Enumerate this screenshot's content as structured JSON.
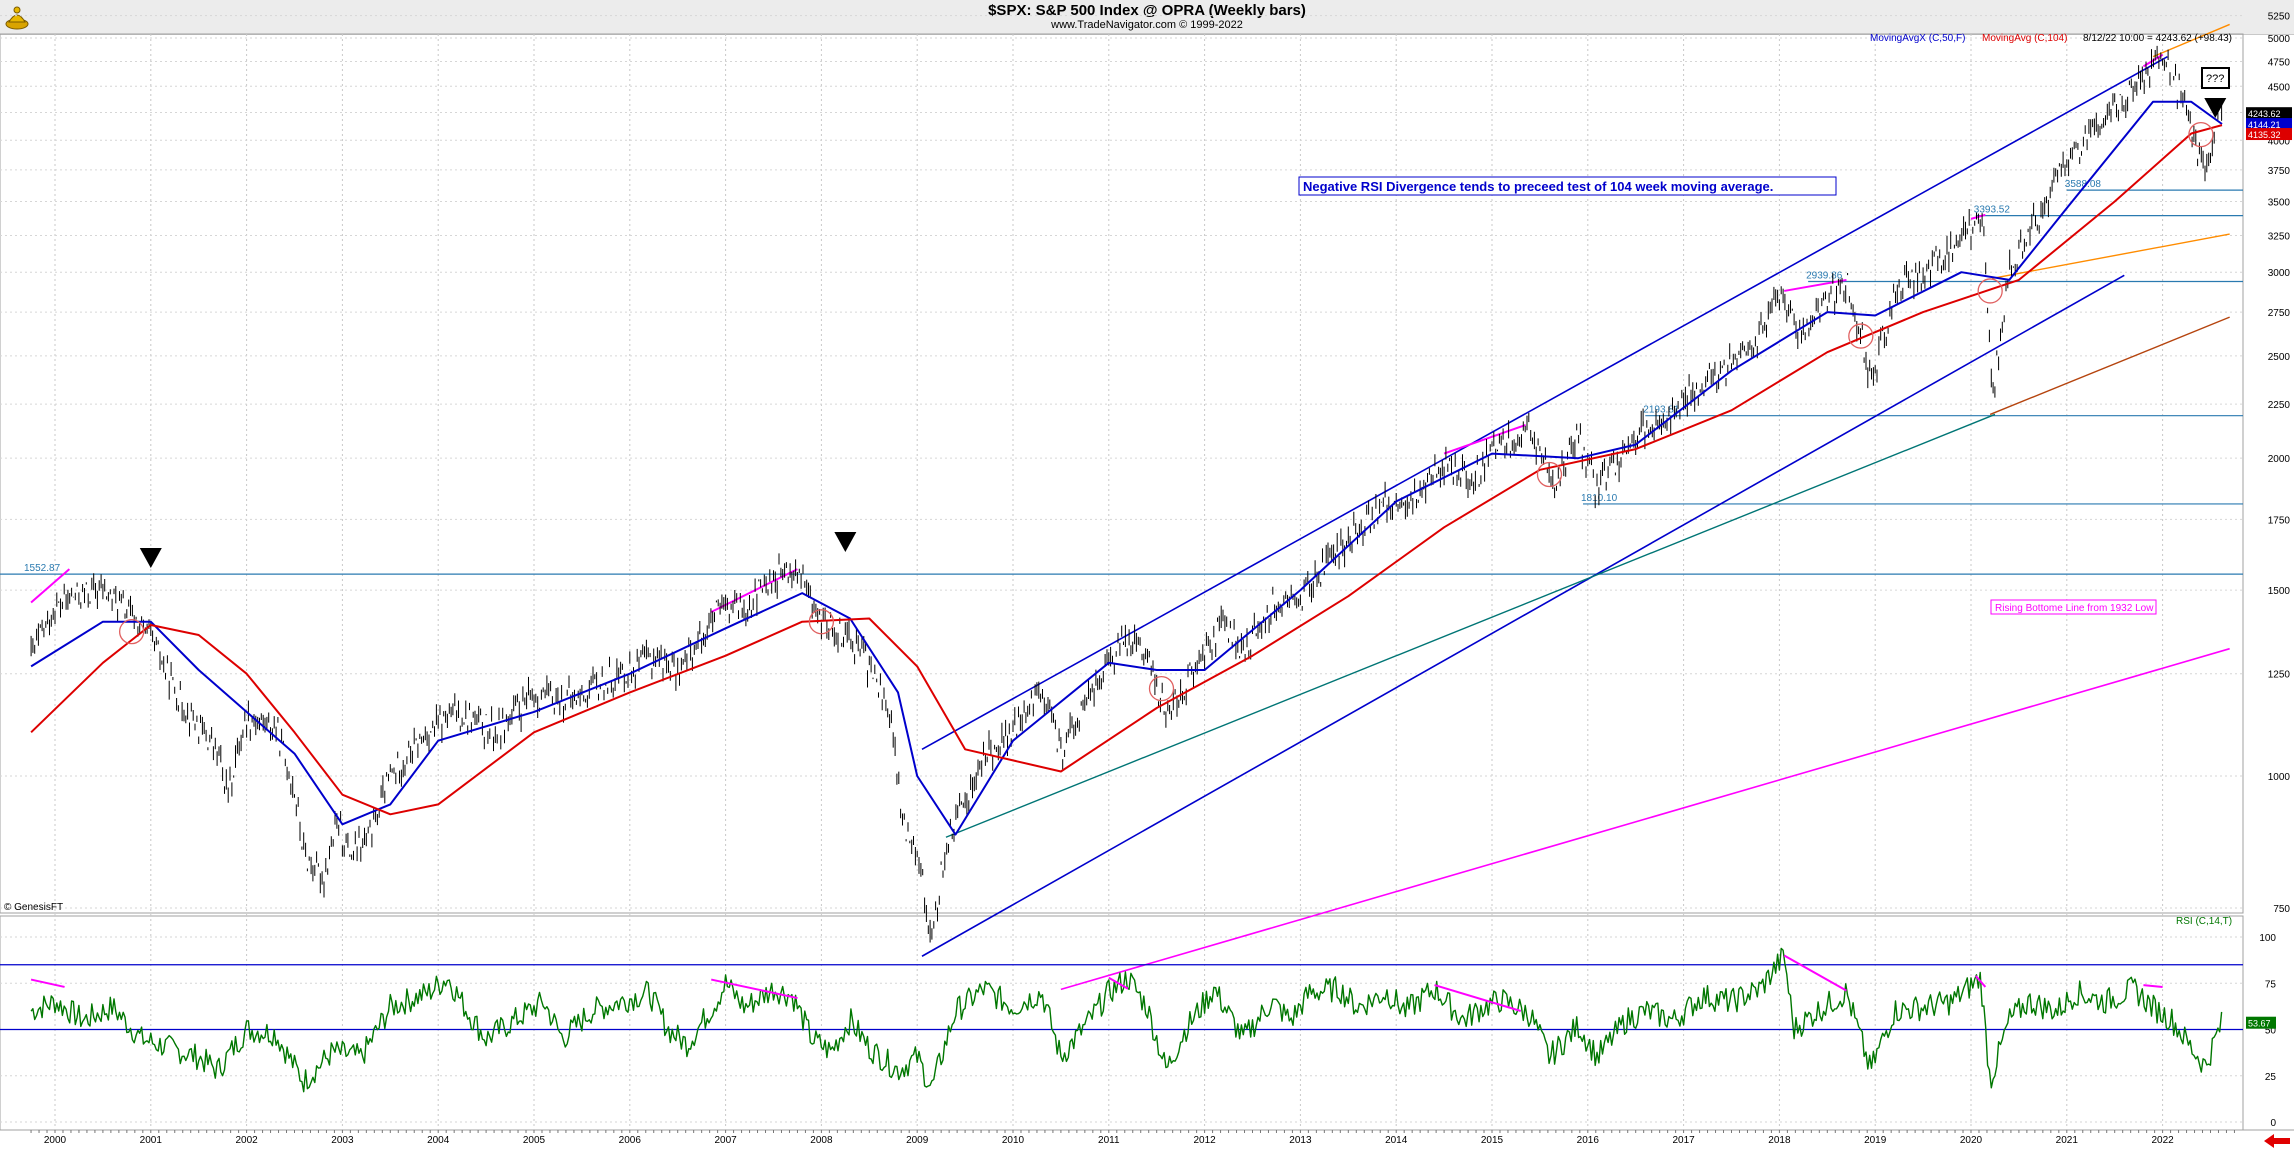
{
  "header": {
    "title": "$SPX:  S&P 500 Index @ OPRA  (Weekly bars)",
    "subtitle": "www.TradeNavigator.com © 1999-2022"
  },
  "legend": {
    "ma50": "MovingAvgX (C,50,F)",
    "ma104": "MovingAvg (C,104)",
    "quote": "8/12/22 10:00 = 4243.62 (+98.43)",
    "rsi": "RSI (C,14,T)",
    "copyright": "© GenesisFT"
  },
  "annotations": {
    "note": "Negative RSI Divergence tends to preceed test of 104 week moving average.",
    "rising_line": "Rising Bottome Line from 1932 Low",
    "question": "???"
  },
  "colors": {
    "price": "#000000",
    "ma50": "#0000cc",
    "ma104": "#dd0000",
    "channel": "#0000cc",
    "orange": "#ff8c00",
    "brown": "#b5440e",
    "teal": "#007575",
    "magenta": "#ff00ff",
    "hline": "#2a7ab0",
    "rsi": "#007700"
  },
  "chart_data": {
    "type": "line",
    "title": "$SPX:  S&P 500 Index @ OPRA  (Weekly bars)",
    "x_ticks": [
      "2000",
      "2001",
      "2002",
      "2003",
      "2004",
      "2005",
      "2006",
      "2007",
      "2008",
      "2009",
      "2010",
      "2011",
      "2012",
      "2013",
      "2014",
      "2015",
      "2016",
      "2017",
      "2018",
      "2019",
      "2020",
      "2021",
      "2022"
    ],
    "y_ticks": [
      750,
      1000,
      1250,
      1500,
      1750,
      2000,
      2250,
      2500,
      2750,
      3000,
      3250,
      3500,
      3750,
      4000,
      4250,
      4500,
      4750,
      5000,
      5250
    ],
    "price_labels": [
      "4243.62",
      "4144.21",
      "4135.32"
    ],
    "rsi_ticks": [
      0,
      25,
      50,
      75,
      100
    ],
    "rsi_value_label": "53.67",
    "series": [
      {
        "name": "$SPX",
        "values": [
          [
            1999.75,
            1300
          ],
          [
            2000.0,
            1440
          ],
          [
            2000.2,
            1480
          ],
          [
            2000.5,
            1500
          ],
          [
            2000.7,
            1450
          ],
          [
            2001.0,
            1350
          ],
          [
            2001.3,
            1180
          ],
          [
            2001.7,
            1050
          ],
          [
            2001.8,
            960
          ],
          [
            2002.0,
            1140
          ],
          [
            2002.3,
            1110
          ],
          [
            2002.5,
            970
          ],
          [
            2002.6,
            840
          ],
          [
            2002.8,
            800
          ],
          [
            2002.95,
            900
          ],
          [
            2003.1,
            840
          ],
          [
            2003.3,
            880
          ],
          [
            2003.5,
            1000
          ],
          [
            2003.9,
            1100
          ],
          [
            2004.2,
            1150
          ],
          [
            2004.6,
            1100
          ],
          [
            2005.0,
            1190
          ],
          [
            2005.4,
            1180
          ],
          [
            2005.9,
            1250
          ],
          [
            2006.3,
            1300
          ],
          [
            2006.5,
            1250
          ],
          [
            2006.9,
            1420
          ],
          [
            2007.2,
            1450
          ],
          [
            2007.5,
            1540
          ],
          [
            2007.75,
            1560
          ],
          [
            2008.0,
            1400
          ],
          [
            2008.3,
            1360
          ],
          [
            2008.5,
            1270
          ],
          [
            2008.7,
            1160
          ],
          [
            2008.85,
            900
          ],
          [
            2009.0,
            860
          ],
          [
            2009.15,
            690
          ],
          [
            2009.3,
            860
          ],
          [
            2009.5,
            950
          ],
          [
            2009.75,
            1060
          ],
          [
            2010.0,
            1100
          ],
          [
            2010.3,
            1210
          ],
          [
            2010.5,
            1050
          ],
          [
            2010.8,
            1190
          ],
          [
            2011.1,
            1320
          ],
          [
            2011.3,
            1360
          ],
          [
            2011.6,
            1150
          ],
          [
            2011.8,
            1220
          ],
          [
            2012.2,
            1400
          ],
          [
            2012.4,
            1300
          ],
          [
            2012.7,
            1450
          ],
          [
            2013.0,
            1470
          ],
          [
            2013.4,
            1640
          ],
          [
            2013.9,
            1820
          ],
          [
            2014.1,
            1800
          ],
          [
            2014.5,
            1980
          ],
          [
            2014.8,
            1900
          ],
          [
            2015.1,
            2070
          ],
          [
            2015.4,
            2120
          ],
          [
            2015.65,
            1890
          ],
          [
            2015.9,
            2080
          ],
          [
            2016.1,
            1860
          ],
          [
            2016.5,
            2100
          ],
          [
            2016.9,
            2220
          ],
          [
            2017.3,
            2400
          ],
          [
            2017.7,
            2550
          ],
          [
            2018.05,
            2860
          ],
          [
            2018.2,
            2620
          ],
          [
            2018.7,
            2930
          ],
          [
            2018.97,
            2350
          ],
          [
            2019.2,
            2850
          ],
          [
            2019.5,
            3000
          ],
          [
            2019.9,
            3230
          ],
          [
            2020.13,
            3380
          ],
          [
            2020.22,
            2240
          ],
          [
            2020.4,
            3000
          ],
          [
            2020.7,
            3400
          ],
          [
            2021.0,
            3800
          ],
          [
            2021.4,
            4200
          ],
          [
            2021.8,
            4600
          ],
          [
            2022.0,
            4790
          ],
          [
            2022.2,
            4400
          ],
          [
            2022.45,
            3670
          ],
          [
            2022.55,
            4100
          ],
          [
            2022.62,
            4243
          ]
        ]
      },
      {
        "name": "MovingAvgX (C,50,F)",
        "values": [
          [
            1999.75,
            1270
          ],
          [
            2000.5,
            1400
          ],
          [
            2001.0,
            1400
          ],
          [
            2001.5,
            1260
          ],
          [
            2002.0,
            1150
          ],
          [
            2002.5,
            1050
          ],
          [
            2003.0,
            900
          ],
          [
            2003.5,
            940
          ],
          [
            2004.0,
            1080
          ],
          [
            2005.0,
            1150
          ],
          [
            2006.0,
            1250
          ],
          [
            2007.0,
            1380
          ],
          [
            2007.8,
            1490
          ],
          [
            2008.3,
            1410
          ],
          [
            2008.8,
            1200
          ],
          [
            2009.0,
            1000
          ],
          [
            2009.4,
            880
          ],
          [
            2010.0,
            1080
          ],
          [
            2011.0,
            1280
          ],
          [
            2011.5,
            1260
          ],
          [
            2012.0,
            1260
          ],
          [
            2013.0,
            1500
          ],
          [
            2014.0,
            1820
          ],
          [
            2015.0,
            2020
          ],
          [
            2015.9,
            2000
          ],
          [
            2016.5,
            2060
          ],
          [
            2017.5,
            2420
          ],
          [
            2018.5,
            2750
          ],
          [
            2019.0,
            2730
          ],
          [
            2019.9,
            3000
          ],
          [
            2020.4,
            2950
          ],
          [
            2021.0,
            3450
          ],
          [
            2021.9,
            4350
          ],
          [
            2022.3,
            4350
          ],
          [
            2022.62,
            4145
          ]
        ]
      },
      {
        "name": "MovingAvg (C,104)",
        "values": [
          [
            1999.75,
            1100
          ],
          [
            2000.5,
            1280
          ],
          [
            2001.0,
            1390
          ],
          [
            2001.5,
            1360
          ],
          [
            2002.0,
            1250
          ],
          [
            2002.5,
            1100
          ],
          [
            2003.0,
            960
          ],
          [
            2003.5,
            920
          ],
          [
            2004.0,
            940
          ],
          [
            2005.0,
            1100
          ],
          [
            2006.0,
            1200
          ],
          [
            2007.0,
            1300
          ],
          [
            2007.8,
            1400
          ],
          [
            2008.5,
            1410
          ],
          [
            2009.0,
            1270
          ],
          [
            2009.5,
            1060
          ],
          [
            2010.5,
            1010
          ],
          [
            2011.5,
            1160
          ],
          [
            2012.5,
            1300
          ],
          [
            2013.5,
            1480
          ],
          [
            2014.5,
            1720
          ],
          [
            2015.5,
            1950
          ],
          [
            2016.5,
            2040
          ],
          [
            2017.5,
            2220
          ],
          [
            2018.5,
            2520
          ],
          [
            2019.5,
            2750
          ],
          [
            2020.5,
            2950
          ],
          [
            2021.5,
            3500
          ],
          [
            2022.3,
            4060
          ],
          [
            2022.62,
            4135
          ]
        ]
      }
    ],
    "horizontal_levels": [
      {
        "label": "1552.87",
        "value": 1553
      },
      {
        "label": "1810.10",
        "value": 1810
      },
      {
        "label": "2193.81",
        "value": 2194
      },
      {
        "label": "2939.86",
        "value": 2940
      },
      {
        "label": "3393.52",
        "value": 3394
      },
      {
        "label": "3588.08",
        "value": 3588
      }
    ],
    "rsi": {
      "name": "RSI (C,14,T)",
      "overbought": 85,
      "midline": 50,
      "values": [
        [
          1999.75,
          60
        ],
        [
          2000.0,
          65
        ],
        [
          2000.3,
          55
        ],
        [
          2000.6,
          62
        ],
        [
          2000.9,
          45
        ],
        [
          2001.2,
          40
        ],
        [
          2001.5,
          35
        ],
        [
          2001.7,
          28
        ],
        [
          2002.0,
          50
        ],
        [
          2002.3,
          48
        ],
        [
          2002.5,
          30
        ],
        [
          2002.6,
          22
        ],
        [
          2002.9,
          38
        ],
        [
          2003.2,
          35
        ],
        [
          2003.5,
          62
        ],
        [
          2003.9,
          70
        ],
        [
          2004.1,
          78
        ],
        [
          2004.3,
          60
        ],
        [
          2004.5,
          45
        ],
        [
          2004.8,
          55
        ],
        [
          2005.1,
          65
        ],
        [
          2005.3,
          45
        ],
        [
          2005.6,
          60
        ],
        [
          2005.9,
          65
        ],
        [
          2006.2,
          70
        ],
        [
          2006.4,
          50
        ],
        [
          2006.6,
          42
        ],
        [
          2006.9,
          65
        ],
        [
          2007.0,
          75
        ],
        [
          2007.2,
          62
        ],
        [
          2007.5,
          72
        ],
        [
          2007.7,
          68
        ],
        [
          2007.9,
          45
        ],
        [
          2008.1,
          38
        ],
        [
          2008.3,
          55
        ],
        [
          2008.5,
          40
        ],
        [
          2008.8,
          28
        ],
        [
          2009.0,
          35
        ],
        [
          2009.15,
          18
        ],
        [
          2009.4,
          60
        ],
        [
          2009.7,
          72
        ],
        [
          2010.0,
          62
        ],
        [
          2010.3,
          70
        ],
        [
          2010.5,
          35
        ],
        [
          2010.8,
          55
        ],
        [
          2011.0,
          70
        ],
        [
          2011.2,
          78
        ],
        [
          2011.4,
          62
        ],
        [
          2011.6,
          28
        ],
        [
          2011.8,
          50
        ],
        [
          2012.1,
          72
        ],
        [
          2012.4,
          45
        ],
        [
          2012.7,
          65
        ],
        [
          2012.9,
          55
        ],
        [
          2013.1,
          70
        ],
        [
          2013.4,
          72
        ],
        [
          2013.6,
          62
        ],
        [
          2013.9,
          70
        ],
        [
          2014.1,
          60
        ],
        [
          2014.4,
          72
        ],
        [
          2014.7,
          55
        ],
        [
          2014.9,
          62
        ],
        [
          2015.1,
          66
        ],
        [
          2015.4,
          58
        ],
        [
          2015.6,
          35
        ],
        [
          2015.9,
          52
        ],
        [
          2016.1,
          35
        ],
        [
          2016.4,
          55
        ],
        [
          2016.6,
          60
        ],
        [
          2016.9,
          55
        ],
        [
          2017.2,
          68
        ],
        [
          2017.5,
          65
        ],
        [
          2017.8,
          72
        ],
        [
          2018.05,
          90
        ],
        [
          2018.15,
          50
        ],
        [
          2018.4,
          60
        ],
        [
          2018.7,
          70
        ],
        [
          2018.95,
          28
        ],
        [
          2019.2,
          60
        ],
        [
          2019.5,
          62
        ],
        [
          2019.8,
          65
        ],
        [
          2020.1,
          78
        ],
        [
          2020.2,
          22
        ],
        [
          2020.4,
          55
        ],
        [
          2020.6,
          65
        ],
        [
          2020.9,
          60
        ],
        [
          2021.1,
          70
        ],
        [
          2021.4,
          65
        ],
        [
          2021.7,
          72
        ],
        [
          2021.9,
          62
        ],
        [
          2022.1,
          55
        ],
        [
          2022.3,
          40
        ],
        [
          2022.45,
          30
        ],
        [
          2022.55,
          45
        ],
        [
          2022.62,
          53.67
        ]
      ]
    }
  }
}
